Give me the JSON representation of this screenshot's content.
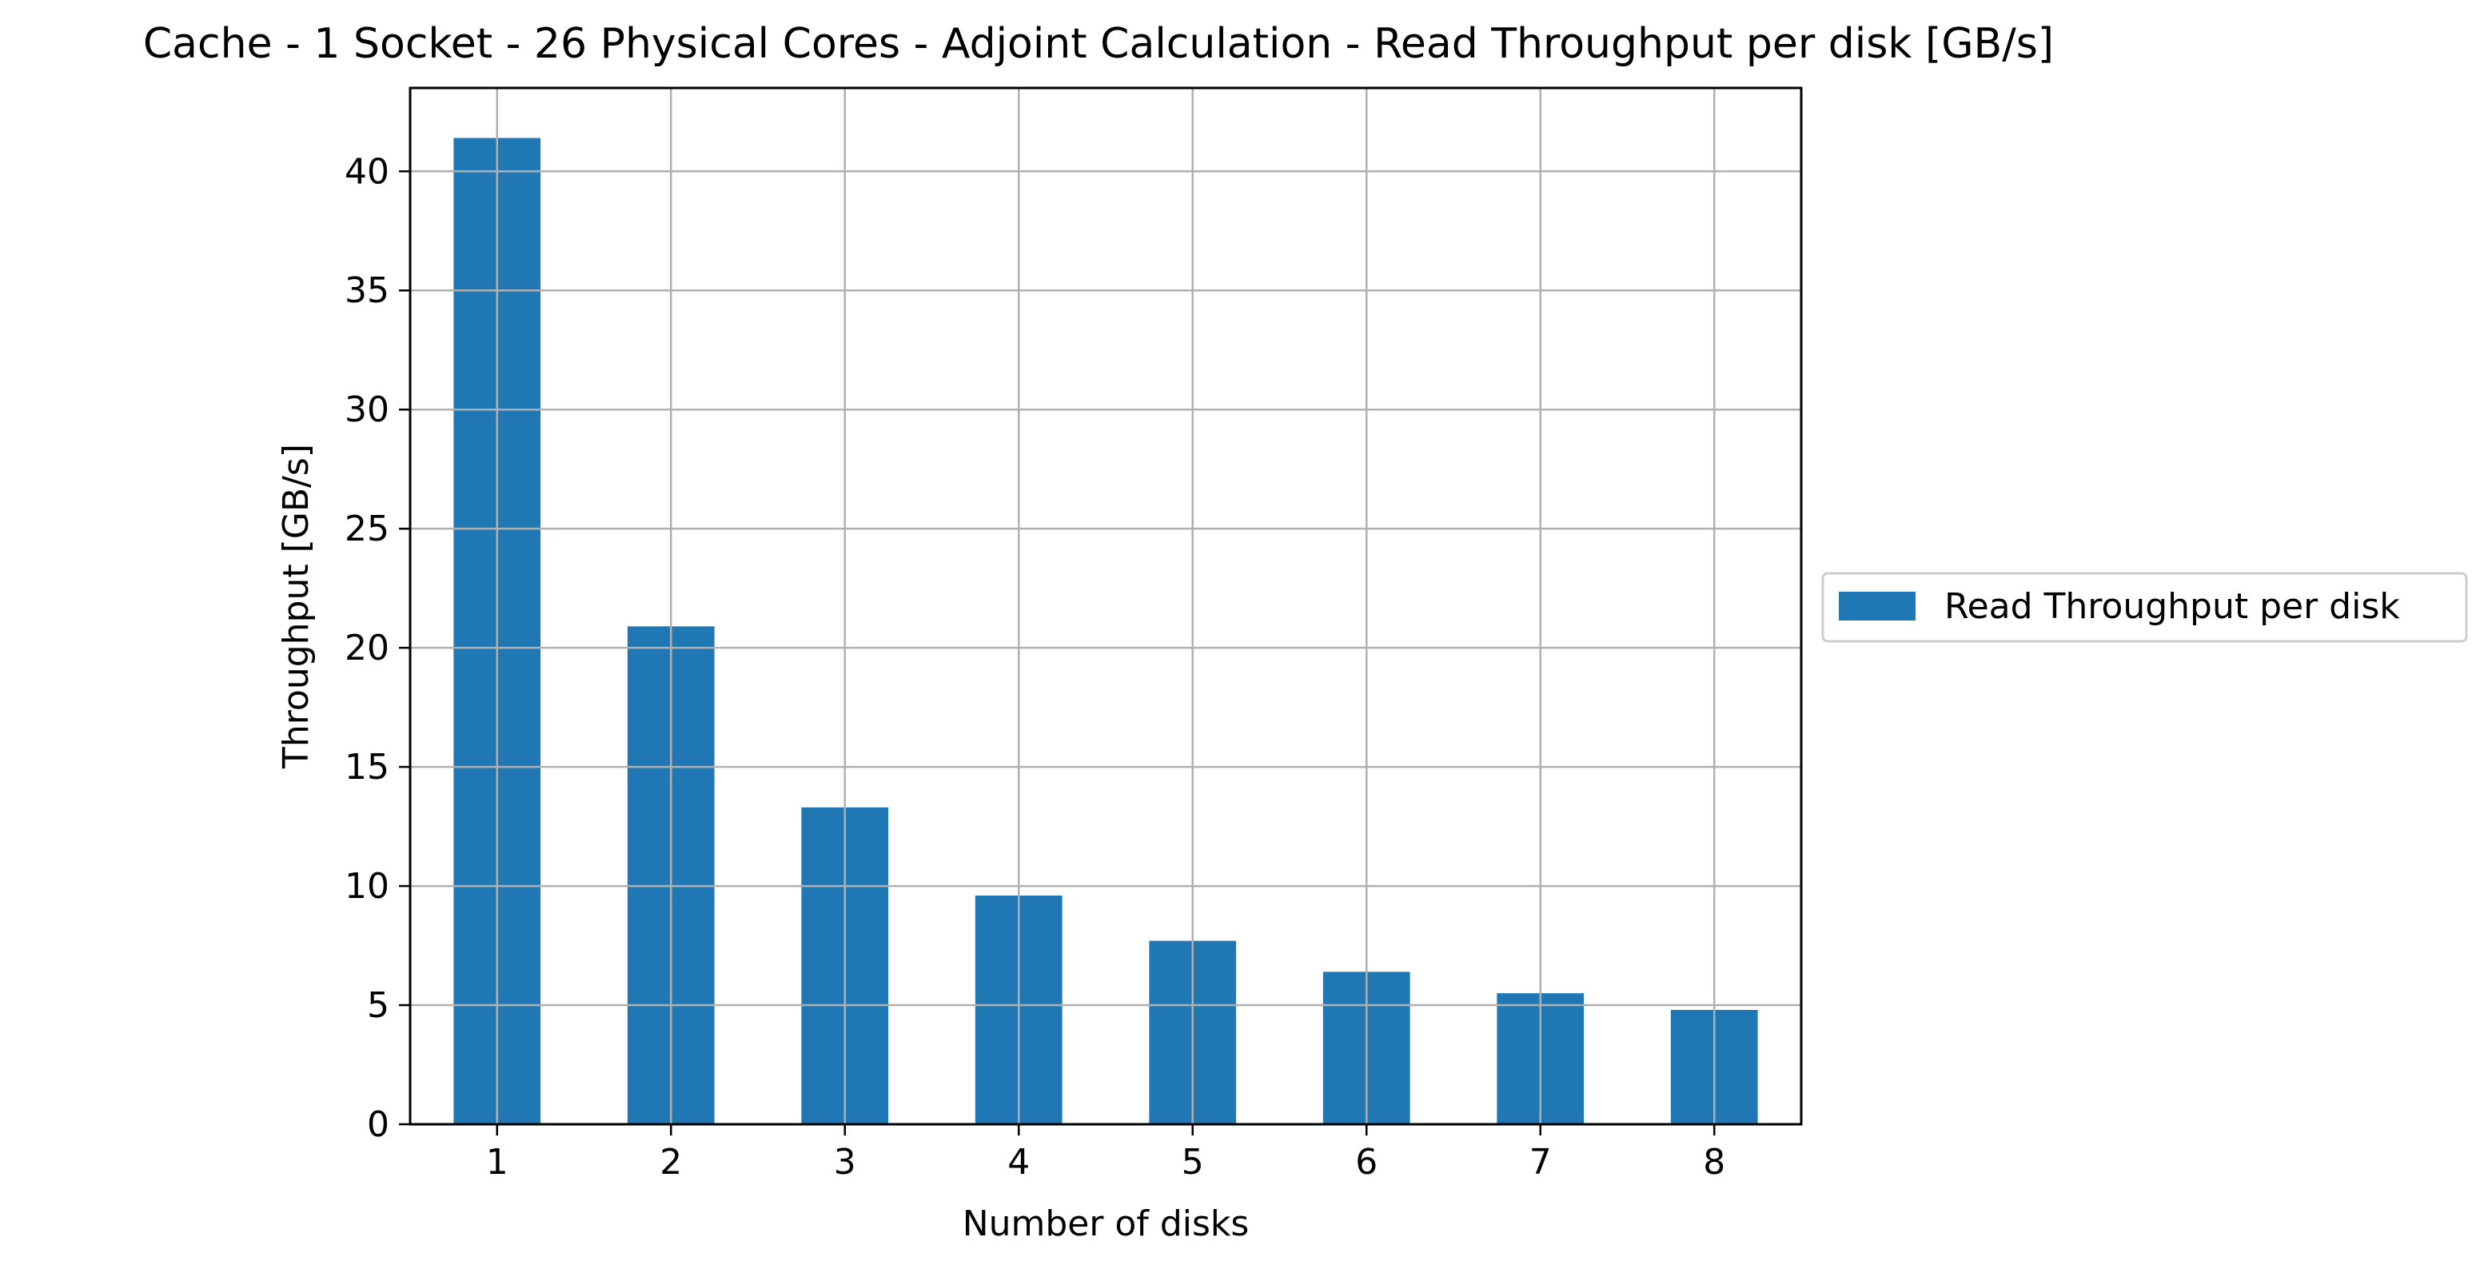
{
  "chart_data": {
    "type": "bar",
    "title": "Cache - 1 Socket - 26 Physical Cores - Adjoint Calculation - Read Throughput per disk [GB/s]",
    "xlabel": "Number of disks",
    "ylabel": "Throughput [GB/s]",
    "categories": [
      "1",
      "2",
      "3",
      "4",
      "5",
      "6",
      "7",
      "8"
    ],
    "series": [
      {
        "name": "Read Throughput per disk",
        "color": "#1f77b4",
        "values": [
          41.4,
          20.9,
          13.3,
          9.6,
          7.7,
          6.4,
          5.5,
          4.8
        ]
      }
    ],
    "ylim": [
      0,
      43.5
    ],
    "yticks": [
      "0",
      "5",
      "10",
      "15",
      "20",
      "25",
      "30",
      "35",
      "40"
    ],
    "grid": true,
    "legend_position": "center-left-outside"
  }
}
